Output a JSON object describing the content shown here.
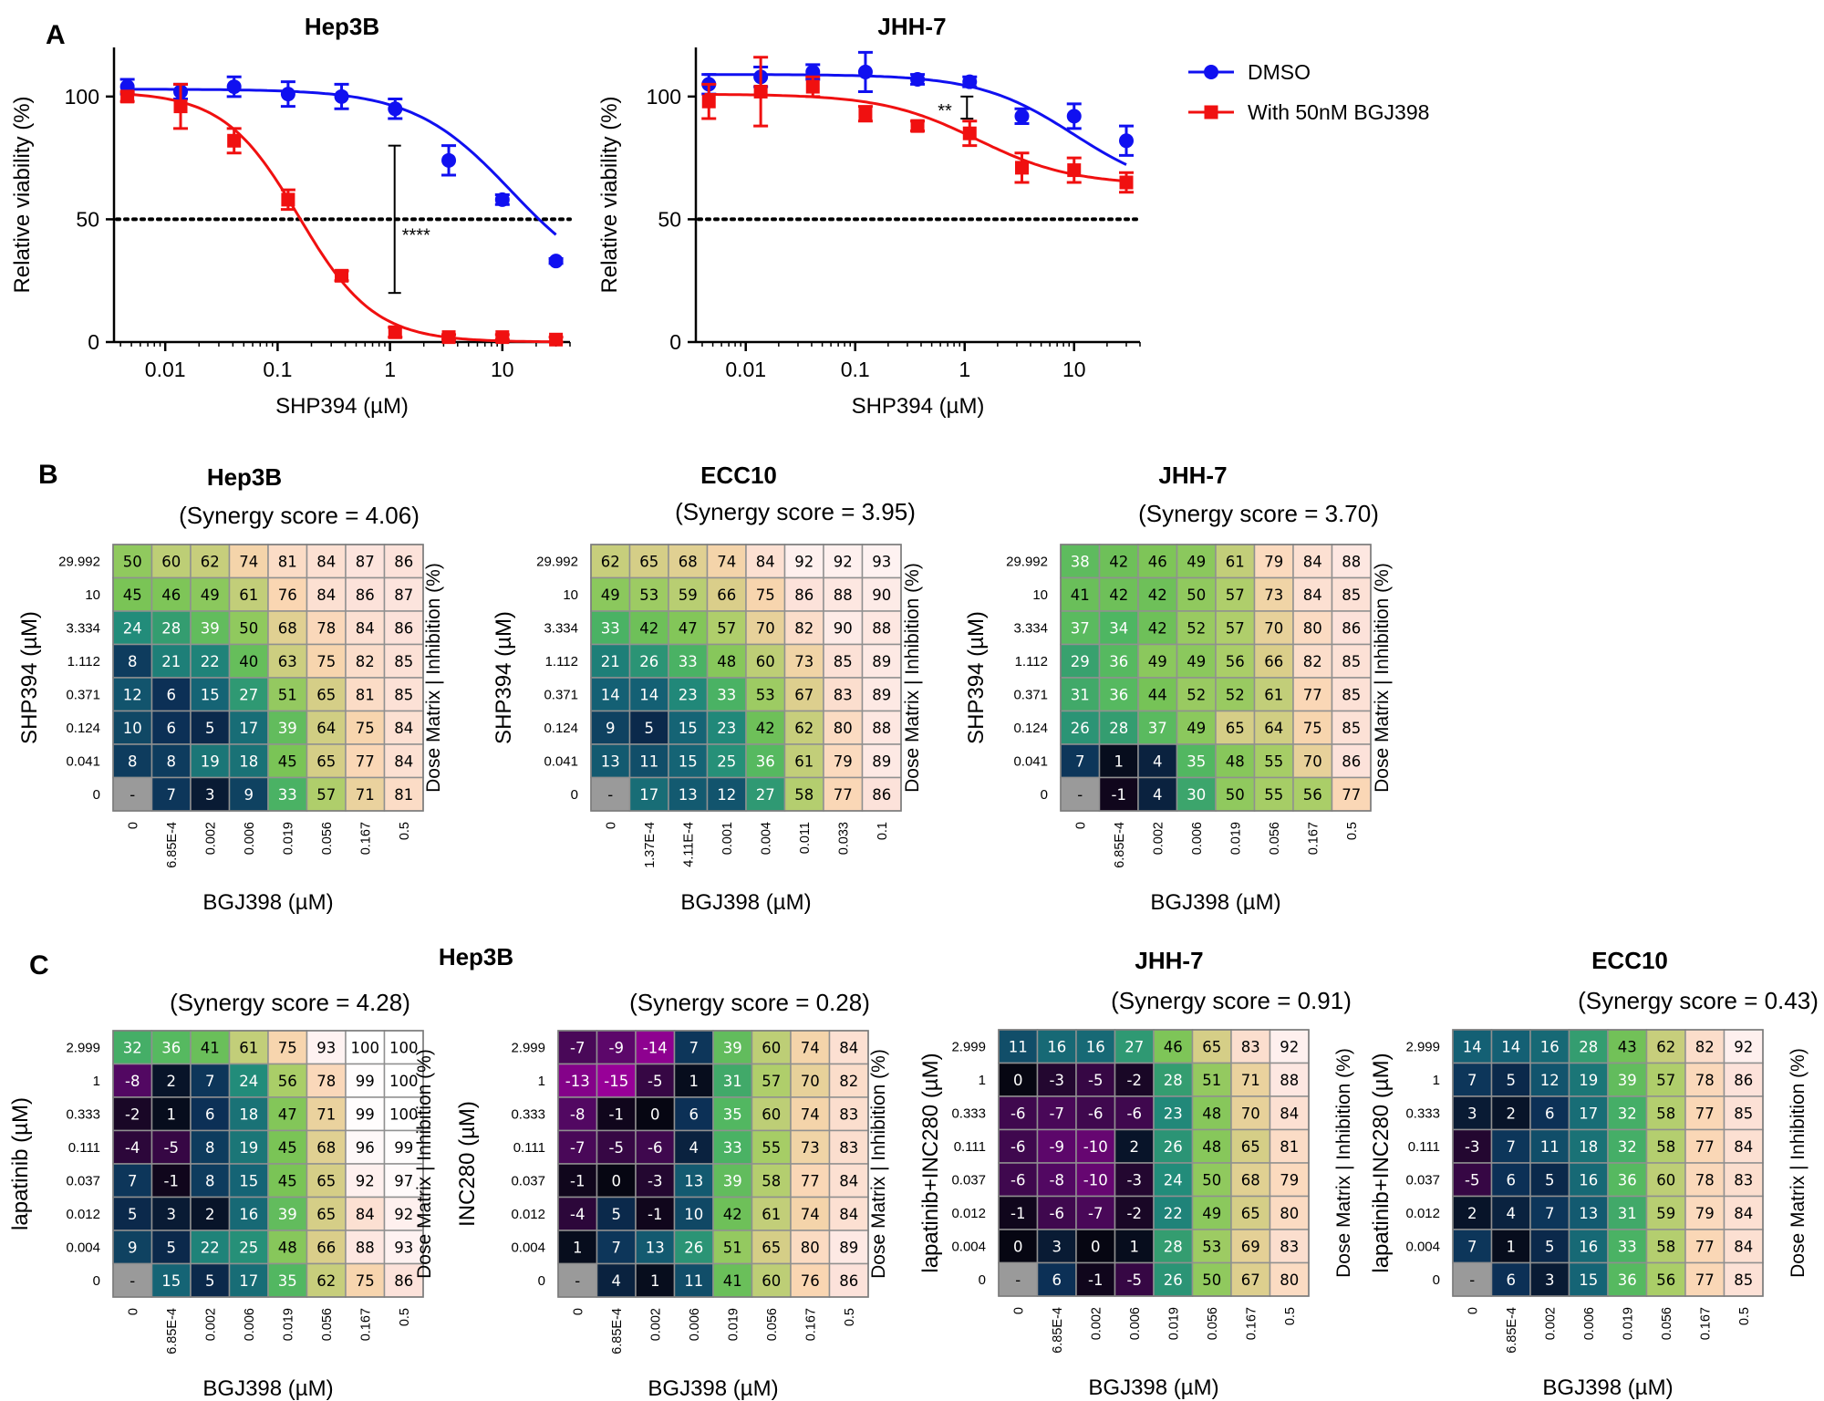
{
  "panels": {
    "A": "A",
    "B": "B",
    "C": "C"
  },
  "colors": {
    "dmso": "#1010f0",
    "bgj": "#f01010"
  },
  "chart_data": [
    {
      "type": "line",
      "panel": "A",
      "title": "Hep3B",
      "xlabel": "SHP394 (µM)",
      "ylabel": "Relative viability (%)",
      "xscale": "log",
      "xlim": [
        0.0035,
        40
      ],
      "ylim": [
        0,
        120
      ],
      "xticks": [
        "0.01",
        "0.1",
        "1",
        "10"
      ],
      "xtick_values": [
        0.01,
        0.1,
        1,
        10
      ],
      "yticks": [
        0,
        50,
        100
      ],
      "reference_line_y": 50,
      "annotation": {
        "text": "****",
        "x": 1.1,
        "y_low": 20,
        "y_high": 80
      },
      "series": [
        {
          "name": "DMSO",
          "color": "#1010f0",
          "marker": "circle",
          "x": [
            0.0046,
            0.0137,
            0.041,
            0.124,
            0.371,
            1.112,
            3.334,
            10,
            30
          ],
          "y": [
            104,
            102,
            104,
            101,
            100,
            95,
            74,
            58,
            33
          ],
          "err": [
            3,
            3,
            4,
            5,
            5,
            4,
            6,
            2,
            1
          ],
          "curve": {
            "top": 103,
            "bottom": 20,
            "ec50": 12,
            "hill": 1.0
          }
        },
        {
          "name": "With 50nM BGJ398",
          "color": "#f01010",
          "marker": "square",
          "x": [
            0.0046,
            0.0137,
            0.041,
            0.124,
            0.371,
            1.112,
            3.334,
            10,
            30
          ],
          "y": [
            100,
            96,
            82,
            58,
            27,
            4,
            2,
            2,
            1
          ],
          "err": [
            2,
            9,
            5,
            4,
            2,
            2,
            1,
            1,
            1
          ],
          "curve": {
            "top": 102,
            "bottom": 0,
            "ec50": 0.155,
            "hill": 1.3
          }
        }
      ]
    },
    {
      "type": "line",
      "panel": "A",
      "title": "JHH-7",
      "xlabel": "SHP394 (µM)",
      "ylabel": "Relative viability (%)",
      "xscale": "log",
      "xlim": [
        0.0035,
        40
      ],
      "ylim": [
        0,
        120
      ],
      "xticks": [
        "0.01",
        "0.1",
        "1",
        "10"
      ],
      "xtick_values": [
        0.01,
        0.1,
        1,
        10
      ],
      "yticks": [
        0,
        50,
        100
      ],
      "reference_line_y": 50,
      "annotation": {
        "text": "**",
        "x": 1.05,
        "y_low": 91,
        "y_high": 100
      },
      "series": [
        {
          "name": "DMSO",
          "color": "#1010f0",
          "marker": "circle",
          "x": [
            0.0046,
            0.0137,
            0.041,
            0.124,
            0.371,
            1.112,
            3.334,
            10,
            30
          ],
          "y": [
            105,
            108,
            110,
            110,
            107,
            106,
            92,
            92,
            82
          ],
          "err": [
            4,
            4,
            3,
            8,
            2,
            2,
            3,
            5,
            6
          ],
          "curve": {
            "top": 109,
            "bottom": 60,
            "ec50": 10,
            "hill": 1.0
          }
        },
        {
          "name": "With 50nM BGJ398",
          "color": "#f01010",
          "marker": "square",
          "x": [
            0.0046,
            0.0137,
            0.041,
            0.124,
            0.371,
            1.112,
            3.334,
            10,
            30
          ],
          "y": [
            98,
            102,
            104,
            93,
            88,
            85,
            71,
            70,
            65
          ],
          "err": [
            7,
            14,
            4,
            3,
            2,
            5,
            6,
            5,
            4
          ],
          "curve": {
            "top": 101,
            "bottom": 64,
            "ec50": 1.3,
            "hill": 1.0
          }
        }
      ]
    },
    {
      "type": "heatmap",
      "panel": "B",
      "title": "Hep3B",
      "subtitle": "(Synergy score = 4.06)",
      "xlabel": "BGJ398 (µM)",
      "ylabel": "SHP394 (µM)",
      "right_label": "Dose Matrix | Inhibition (%)",
      "x": [
        "0",
        "6.85E-4",
        "0.002",
        "0.006",
        "0.019",
        "0.056",
        "0.167",
        "0.5"
      ],
      "y": [
        "29.992",
        "10",
        "3.334",
        "1.112",
        "0.371",
        "0.124",
        "0.041",
        "0"
      ],
      "values": [
        [
          "50",
          "60",
          "62",
          "74",
          "81",
          "84",
          "87",
          "86"
        ],
        [
          "45",
          "46",
          "49",
          "61",
          "76",
          "84",
          "86",
          "87"
        ],
        [
          "24",
          "28",
          "39",
          "50",
          "68",
          "78",
          "84",
          "86"
        ],
        [
          "8",
          "21",
          "22",
          "40",
          "63",
          "75",
          "82",
          "85"
        ],
        [
          "12",
          "6",
          "15",
          "27",
          "51",
          "65",
          "81",
          "85"
        ],
        [
          "10",
          "6",
          "5",
          "17",
          "39",
          "64",
          "75",
          "84"
        ],
        [
          "8",
          "8",
          "19",
          "18",
          "45",
          "65",
          "77",
          "84"
        ],
        [
          "-",
          "7",
          "3",
          "9",
          "33",
          "57",
          "71",
          "81"
        ]
      ]
    },
    {
      "type": "heatmap",
      "panel": "B",
      "title": "ECC10",
      "subtitle": "(Synergy score = 3.95)",
      "xlabel": "BGJ398 (µM)",
      "ylabel": "SHP394 (µM)",
      "right_label": "Dose Matrix | Inhibition (%)",
      "x": [
        "0",
        "1.37E-4",
        "4.11E-4",
        "0.001",
        "0.004",
        "0.011",
        "0.033",
        "0.1"
      ],
      "y": [
        "29.992",
        "10",
        "3.334",
        "1.112",
        "0.371",
        "0.124",
        "0.041",
        "0"
      ],
      "values": [
        [
          "62",
          "65",
          "68",
          "74",
          "84",
          "92",
          "92",
          "93"
        ],
        [
          "49",
          "53",
          "59",
          "66",
          "75",
          "86",
          "88",
          "90"
        ],
        [
          "33",
          "42",
          "47",
          "57",
          "70",
          "82",
          "90",
          "88"
        ],
        [
          "21",
          "26",
          "33",
          "48",
          "60",
          "73",
          "85",
          "89"
        ],
        [
          "14",
          "14",
          "23",
          "33",
          "53",
          "67",
          "83",
          "89"
        ],
        [
          "9",
          "5",
          "15",
          "23",
          "42",
          "62",
          "80",
          "88"
        ],
        [
          "13",
          "11",
          "15",
          "25",
          "36",
          "61",
          "79",
          "89"
        ],
        [
          "-",
          "17",
          "13",
          "12",
          "27",
          "58",
          "77",
          "86"
        ]
      ]
    },
    {
      "type": "heatmap",
      "panel": "B",
      "title": "JHH-7",
      "subtitle": "(Synergy score = 3.70)",
      "xlabel": "BGJ398 (µM)",
      "ylabel": "SHP394 (µM)",
      "right_label": "Dose Matrix | Inhibition (%)",
      "x": [
        "0",
        "6.85E-4",
        "0.002",
        "0.006",
        "0.019",
        "0.056",
        "0.167",
        "0.5"
      ],
      "y": [
        "29.992",
        "10",
        "3.334",
        "1.112",
        "0.371",
        "0.124",
        "0.041",
        "0"
      ],
      "values": [
        [
          "38",
          "42",
          "46",
          "49",
          "61",
          "79",
          "84",
          "88"
        ],
        [
          "41",
          "42",
          "42",
          "50",
          "57",
          "73",
          "84",
          "85"
        ],
        [
          "37",
          "34",
          "42",
          "52",
          "57",
          "70",
          "80",
          "86"
        ],
        [
          "29",
          "36",
          "49",
          "49",
          "56",
          "66",
          "82",
          "85"
        ],
        [
          "31",
          "36",
          "44",
          "52",
          "52",
          "61",
          "77",
          "85"
        ],
        [
          "26",
          "28",
          "37",
          "49",
          "65",
          "64",
          "75",
          "85"
        ],
        [
          "7",
          "1",
          "4",
          "35",
          "48",
          "55",
          "70",
          "86"
        ],
        [
          "-",
          "-1",
          "4",
          "30",
          "50",
          "55",
          "56",
          "77"
        ]
      ]
    },
    {
      "type": "heatmap",
      "panel": "C",
      "title": "Hep3B",
      "subtitle": "(Synergy score = 4.28)",
      "xlabel": "BGJ398 (µM)",
      "ylabel": "lapatinib (µM)",
      "right_label": "Dose Matrix | Inhibition (%)",
      "x": [
        "0",
        "6.85E-4",
        "0.002",
        "0.006",
        "0.019",
        "0.056",
        "0.167",
        "0.5"
      ],
      "y": [
        "2.999",
        "1",
        "0.333",
        "0.111",
        "0.037",
        "0.012",
        "0.004",
        "0"
      ],
      "values": [
        [
          "32",
          "36",
          "41",
          "61",
          "75",
          "93",
          "100",
          "100"
        ],
        [
          "-8",
          "2",
          "7",
          "24",
          "56",
          "78",
          "99",
          "100"
        ],
        [
          "-2",
          "1",
          "6",
          "18",
          "47",
          "71",
          "99",
          "100"
        ],
        [
          "-4",
          "-5",
          "8",
          "19",
          "45",
          "68",
          "96",
          "99"
        ],
        [
          "7",
          "-1",
          "8",
          "15",
          "45",
          "65",
          "92",
          "97"
        ],
        [
          "5",
          "3",
          "2",
          "16",
          "39",
          "65",
          "84",
          "92"
        ],
        [
          "9",
          "5",
          "22",
          "25",
          "48",
          "66",
          "88",
          "93"
        ],
        [
          "-",
          "15",
          "5",
          "17",
          "35",
          "62",
          "75",
          "86"
        ]
      ]
    },
    {
      "type": "heatmap",
      "panel": "C",
      "title": "",
      "subtitle": "(Synergy score = 0.28)",
      "xlabel": "BGJ398 (µM)",
      "ylabel": "INC280 (µM)",
      "right_label": "Dose Matrix | Inhibition (%)",
      "x": [
        "0",
        "6.85E-4",
        "0.002",
        "0.006",
        "0.019",
        "0.056",
        "0.167",
        "0.5"
      ],
      "y": [
        "2.999",
        "1",
        "0.333",
        "0.111",
        "0.037",
        "0.012",
        "0.004",
        "0"
      ],
      "values": [
        [
          "-7",
          "-9",
          "-14",
          "7",
          "39",
          "60",
          "74",
          "84"
        ],
        [
          "-13",
          "-15",
          "-5",
          "1",
          "31",
          "57",
          "70",
          "82"
        ],
        [
          "-8",
          "-1",
          "0",
          "6",
          "35",
          "60",
          "74",
          "83"
        ],
        [
          "-7",
          "-5",
          "-6",
          "4",
          "33",
          "55",
          "73",
          "83"
        ],
        [
          "-1",
          "0",
          "-3",
          "13",
          "39",
          "58",
          "77",
          "84"
        ],
        [
          "-4",
          "5",
          "-1",
          "10",
          "42",
          "61",
          "74",
          "84"
        ],
        [
          "1",
          "7",
          "13",
          "26",
          "51",
          "65",
          "80",
          "89"
        ],
        [
          "-",
          "4",
          "1",
          "11",
          "41",
          "60",
          "76",
          "86"
        ]
      ]
    },
    {
      "type": "heatmap",
      "panel": "C",
      "title": "JHH-7",
      "subtitle": "(Synergy score = 0.91)",
      "xlabel": "BGJ398 (µM)",
      "ylabel": "lapatinib+INC280 (µM)",
      "right_label": "Dose Matrix | Inhibition (%)",
      "x": [
        "0",
        "6.85E-4",
        "0.002",
        "0.006",
        "0.019",
        "0.056",
        "0.167",
        "0.5"
      ],
      "y": [
        "2.999",
        "1",
        "0.333",
        "0.111",
        "0.037",
        "0.012",
        "0.004",
        "0"
      ],
      "values": [
        [
          "11",
          "16",
          "16",
          "27",
          "46",
          "65",
          "83",
          "92"
        ],
        [
          "0",
          "-3",
          "-5",
          "-2",
          "28",
          "51",
          "71",
          "88"
        ],
        [
          "-6",
          "-7",
          "-6",
          "-6",
          "23",
          "48",
          "70",
          "84"
        ],
        [
          "-6",
          "-9",
          "-10",
          "2",
          "26",
          "48",
          "65",
          "81"
        ],
        [
          "-6",
          "-8",
          "-10",
          "-3",
          "24",
          "50",
          "68",
          "79"
        ],
        [
          "-1",
          "-6",
          "-7",
          "-2",
          "22",
          "49",
          "65",
          "80"
        ],
        [
          "0",
          "3",
          "0",
          "1",
          "28",
          "53",
          "69",
          "83"
        ],
        [
          "-",
          "6",
          "-1",
          "-5",
          "26",
          "50",
          "67",
          "80"
        ]
      ]
    },
    {
      "type": "heatmap",
      "panel": "C",
      "title": "ECC10",
      "subtitle": "(Synergy score = 0.43)",
      "xlabel": "BGJ398 (µM)",
      "ylabel": "lapatinib+INC280 (µM)",
      "right_label": "Dose Matrix | Inhibition (%)",
      "x": [
        "0",
        "6.85E-4",
        "0.002",
        "0.006",
        "0.019",
        "0.056",
        "0.167",
        "0.5"
      ],
      "y": [
        "2.999",
        "1",
        "0.333",
        "0.111",
        "0.037",
        "0.012",
        "0.004",
        "0"
      ],
      "values": [
        [
          "14",
          "14",
          "16",
          "28",
          "43",
          "62",
          "82",
          "92"
        ],
        [
          "7",
          "5",
          "12",
          "19",
          "39",
          "57",
          "78",
          "86"
        ],
        [
          "3",
          "2",
          "6",
          "17",
          "32",
          "58",
          "77",
          "85"
        ],
        [
          "-3",
          "7",
          "11",
          "18",
          "32",
          "58",
          "77",
          "84"
        ],
        [
          "-5",
          "6",
          "5",
          "16",
          "36",
          "60",
          "78",
          "83"
        ],
        [
          "2",
          "4",
          "7",
          "13",
          "31",
          "59",
          "79",
          "84"
        ],
        [
          "7",
          "1",
          "5",
          "16",
          "33",
          "58",
          "77",
          "84"
        ],
        [
          "-",
          "6",
          "3",
          "15",
          "36",
          "56",
          "77",
          "85"
        ]
      ]
    }
  ]
}
